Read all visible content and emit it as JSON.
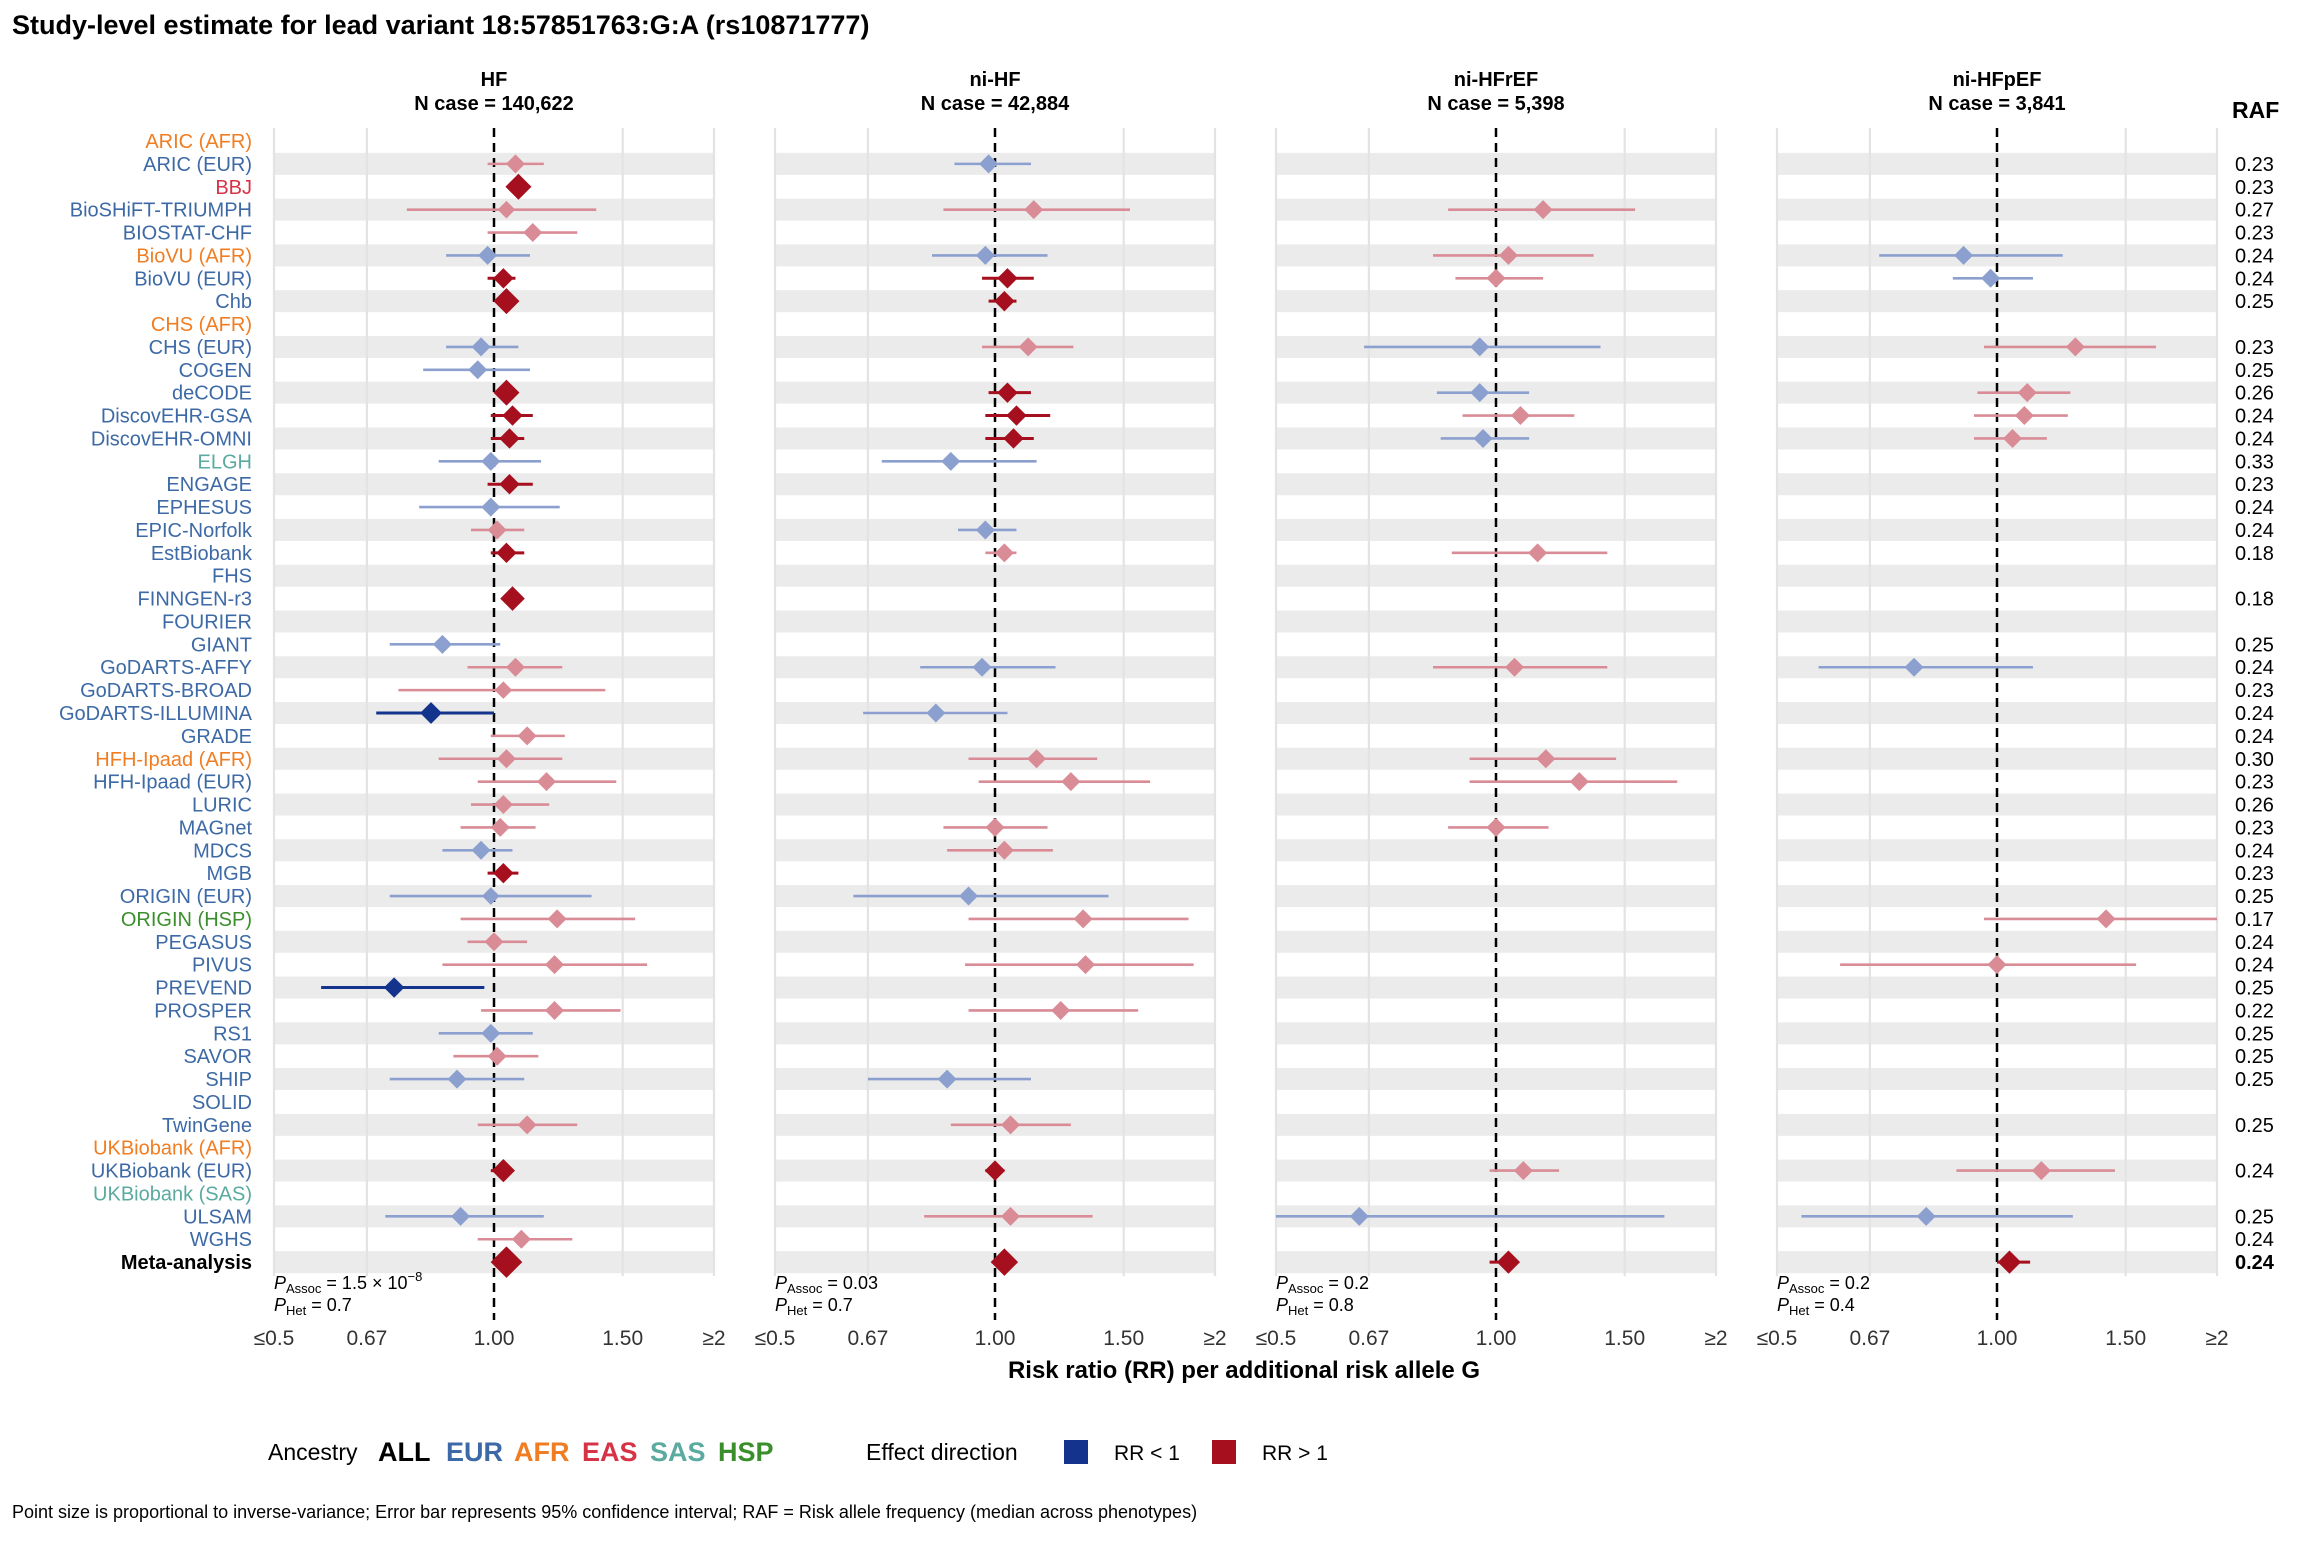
{
  "chart_data": {
    "type": "forest",
    "title": "Study-level estimate for lead variant 18:57851763:G:A (rs10871777)",
    "xlabel": "Risk ratio (RR) per additional risk allele G",
    "raf_header": "RAF",
    "x_ticks": [
      {
        "value": 0.5,
        "label": "≤0.5"
      },
      {
        "value": 0.67,
        "label": "0.67"
      },
      {
        "value": 1.0,
        "label": "1.00"
      },
      {
        "value": 1.5,
        "label": "1.50"
      },
      {
        "value": 2.0,
        "label": "≥2"
      }
    ],
    "xlim": [
      0.5,
      2.0
    ],
    "x_scale": "log",
    "ancestry_colors": {
      "ALL": "#000000",
      "EUR": "#3d6aa6",
      "AFR": "#f07d22",
      "EAS": "#d63446",
      "SAS": "#5aaaa0",
      "HSP": "#3a8f2c"
    },
    "effect_colors": {
      "RR < 1": "#13338c",
      "RR > 1": "#a50f1e"
    },
    "studies": [
      {
        "name": "ARIC (AFR)",
        "ancestry": "AFR",
        "raf": ""
      },
      {
        "name": "ARIC (EUR)",
        "ancestry": "EUR",
        "raf": "0.23"
      },
      {
        "name": "BBJ",
        "ancestry": "EAS",
        "raf": "0.23"
      },
      {
        "name": "BioSHiFT-TRIUMPH",
        "ancestry": "EUR",
        "raf": "0.27"
      },
      {
        "name": "BIOSTAT-CHF",
        "ancestry": "EUR",
        "raf": "0.23"
      },
      {
        "name": "BioVU (AFR)",
        "ancestry": "AFR",
        "raf": "0.24"
      },
      {
        "name": "BioVU (EUR)",
        "ancestry": "EUR",
        "raf": "0.24"
      },
      {
        "name": "Chb",
        "ancestry": "EUR",
        "raf": "0.25"
      },
      {
        "name": "CHS (AFR)",
        "ancestry": "AFR",
        "raf": ""
      },
      {
        "name": "CHS (EUR)",
        "ancestry": "EUR",
        "raf": "0.23"
      },
      {
        "name": "COGEN",
        "ancestry": "EUR",
        "raf": "0.25"
      },
      {
        "name": "deCODE",
        "ancestry": "EUR",
        "raf": "0.26"
      },
      {
        "name": "DiscovEHR-GSA",
        "ancestry": "EUR",
        "raf": "0.24"
      },
      {
        "name": "DiscovEHR-OMNI",
        "ancestry": "EUR",
        "raf": "0.24"
      },
      {
        "name": "ELGH",
        "ancestry": "SAS",
        "raf": "0.33"
      },
      {
        "name": "ENGAGE",
        "ancestry": "EUR",
        "raf": "0.23"
      },
      {
        "name": "EPHESUS",
        "ancestry": "EUR",
        "raf": "0.24"
      },
      {
        "name": "EPIC-Norfolk",
        "ancestry": "EUR",
        "raf": "0.24"
      },
      {
        "name": "EstBiobank",
        "ancestry": "EUR",
        "raf": "0.18"
      },
      {
        "name": "FHS",
        "ancestry": "EUR",
        "raf": ""
      },
      {
        "name": "FINNGEN-r3",
        "ancestry": "EUR",
        "raf": "0.18"
      },
      {
        "name": "FOURIER",
        "ancestry": "EUR",
        "raf": ""
      },
      {
        "name": "GIANT",
        "ancestry": "EUR",
        "raf": "0.25"
      },
      {
        "name": "GoDARTS-AFFY",
        "ancestry": "EUR",
        "raf": "0.24"
      },
      {
        "name": "GoDARTS-BROAD",
        "ancestry": "EUR",
        "raf": "0.23"
      },
      {
        "name": "GoDARTS-ILLUMINA",
        "ancestry": "EUR",
        "raf": "0.24"
      },
      {
        "name": "GRADE",
        "ancestry": "EUR",
        "raf": "0.24"
      },
      {
        "name": "HFH-Ipaad (AFR)",
        "ancestry": "AFR",
        "raf": "0.30"
      },
      {
        "name": "HFH-Ipaad (EUR)",
        "ancestry": "EUR",
        "raf": "0.23"
      },
      {
        "name": "LURIC",
        "ancestry": "EUR",
        "raf": "0.26"
      },
      {
        "name": "MAGnet",
        "ancestry": "EUR",
        "raf": "0.23"
      },
      {
        "name": "MDCS",
        "ancestry": "EUR",
        "raf": "0.24"
      },
      {
        "name": "MGB",
        "ancestry": "EUR",
        "raf": "0.23"
      },
      {
        "name": "ORIGIN (EUR)",
        "ancestry": "EUR",
        "raf": "0.25"
      },
      {
        "name": "ORIGIN (HSP)",
        "ancestry": "HSP",
        "raf": "0.17"
      },
      {
        "name": "PEGASUS",
        "ancestry": "EUR",
        "raf": "0.24"
      },
      {
        "name": "PIVUS",
        "ancestry": "EUR",
        "raf": "0.24"
      },
      {
        "name": "PREVEND",
        "ancestry": "EUR",
        "raf": "0.25"
      },
      {
        "name": "PROSPER",
        "ancestry": "EUR",
        "raf": "0.22"
      },
      {
        "name": "RS1",
        "ancestry": "EUR",
        "raf": "0.25"
      },
      {
        "name": "SAVOR",
        "ancestry": "EUR",
        "raf": "0.25"
      },
      {
        "name": "SHIP",
        "ancestry": "EUR",
        "raf": "0.25"
      },
      {
        "name": "SOLID",
        "ancestry": "EUR",
        "raf": ""
      },
      {
        "name": "TwinGene",
        "ancestry": "EUR",
        "raf": "0.25"
      },
      {
        "name": "UKBiobank (AFR)",
        "ancestry": "AFR",
        "raf": ""
      },
      {
        "name": "UKBiobank (EUR)",
        "ancestry": "EUR",
        "raf": "0.24"
      },
      {
        "name": "UKBiobank (SAS)",
        "ancestry": "SAS",
        "raf": ""
      },
      {
        "name": "ULSAM",
        "ancestry": "EUR",
        "raf": "0.25"
      },
      {
        "name": "WGHS",
        "ancestry": "EUR",
        "raf": "0.24"
      },
      {
        "name": "Meta-analysis",
        "ancestry": "ALL",
        "raf": "0.24"
      }
    ],
    "panels": [
      {
        "name": "HF",
        "n_case": "N case = 140,622",
        "p_assoc_value": " = 1.5 × 10",
        "p_assoc_exp": "−8",
        "p_het_value": " = 0.7",
        "estimates": [
          [
            1,
            1.07,
            0.98,
            1.17,
            0.5
          ],
          [
            2,
            1.08,
            1.05,
            1.11,
            1.0
          ],
          [
            3,
            1.04,
            0.76,
            1.38,
            0.4
          ],
          [
            4,
            1.13,
            0.98,
            1.3,
            0.5
          ],
          [
            5,
            0.98,
            0.86,
            1.12,
            0.5
          ],
          [
            6,
            1.03,
            0.98,
            1.07,
            0.6
          ],
          [
            7,
            1.04,
            1.01,
            1.07,
            1.0
          ],
          [
            9,
            0.96,
            0.86,
            1.08,
            0.5
          ],
          [
            10,
            0.95,
            0.8,
            1.12,
            0.5
          ],
          [
            11,
            1.04,
            1.01,
            1.06,
            1.0
          ],
          [
            12,
            1.06,
            0.99,
            1.13,
            0.6
          ],
          [
            13,
            1.05,
            0.99,
            1.1,
            0.6
          ],
          [
            14,
            0.99,
            0.84,
            1.16,
            0.5
          ],
          [
            15,
            1.05,
            0.98,
            1.13,
            0.6
          ],
          [
            16,
            0.99,
            0.79,
            1.23,
            0.5
          ],
          [
            17,
            1.01,
            0.93,
            1.1,
            0.5
          ],
          [
            18,
            1.04,
            0.99,
            1.1,
            0.6
          ],
          [
            20,
            1.06,
            1.03,
            1.08,
            0.9
          ],
          [
            22,
            0.85,
            0.72,
            1.02,
            0.5
          ],
          [
            23,
            1.07,
            0.92,
            1.24,
            0.5
          ],
          [
            24,
            1.03,
            0.74,
            1.42,
            0.4
          ],
          [
            25,
            0.82,
            0.69,
            1.0,
            0.7
          ],
          [
            26,
            1.11,
            0.99,
            1.25,
            0.5
          ],
          [
            27,
            1.04,
            0.84,
            1.24,
            0.5
          ],
          [
            28,
            1.18,
            0.95,
            1.47,
            0.5
          ],
          [
            29,
            1.03,
            0.93,
            1.19,
            0.5
          ],
          [
            30,
            1.02,
            0.9,
            1.14,
            0.5
          ],
          [
            31,
            0.96,
            0.85,
            1.06,
            0.5
          ],
          [
            32,
            1.03,
            0.98,
            1.08,
            0.6
          ],
          [
            33,
            0.99,
            0.72,
            1.36,
            0.4
          ],
          [
            34,
            1.22,
            0.9,
            1.56,
            0.5
          ],
          [
            35,
            1.0,
            0.92,
            1.11,
            0.5
          ],
          [
            36,
            1.21,
            0.85,
            1.62,
            0.5
          ],
          [
            37,
            0.73,
            0.58,
            0.97,
            0.6
          ],
          [
            38,
            1.21,
            0.96,
            1.49,
            0.5
          ],
          [
            39,
            0.99,
            0.84,
            1.13,
            0.5
          ],
          [
            40,
            1.01,
            0.88,
            1.15,
            0.5
          ],
          [
            41,
            0.89,
            0.72,
            1.1,
            0.5
          ],
          [
            43,
            1.11,
            0.95,
            1.3,
            0.5
          ],
          [
            45,
            1.03,
            0.99,
            1.06,
            0.8
          ],
          [
            47,
            0.9,
            0.71,
            1.17,
            0.5
          ],
          [
            48,
            1.09,
            0.95,
            1.28,
            0.5
          ],
          [
            49,
            1.04,
            1.02,
            1.06,
            1.4
          ]
        ]
      },
      {
        "name": "ni-HF",
        "n_case": "N case = 42,884",
        "p_assoc_value": " = 0.03",
        "p_assoc_exp": "",
        "p_het_value": " = 0.7",
        "estimates": [
          [
            1,
            0.98,
            0.88,
            1.12,
            0.5
          ],
          [
            3,
            1.13,
            0.85,
            1.53,
            0.5
          ],
          [
            5,
            0.97,
            0.82,
            1.18,
            0.5
          ],
          [
            6,
            1.04,
            0.96,
            1.13,
            0.6
          ],
          [
            7,
            1.03,
            0.98,
            1.07,
            0.6
          ],
          [
            9,
            1.11,
            0.96,
            1.28,
            0.5
          ],
          [
            11,
            1.04,
            0.98,
            1.12,
            0.6
          ],
          [
            12,
            1.07,
            0.97,
            1.19,
            0.6
          ],
          [
            13,
            1.06,
            0.97,
            1.13,
            0.6
          ],
          [
            14,
            0.87,
            0.7,
            1.14,
            0.5
          ],
          [
            17,
            0.97,
            0.89,
            1.07,
            0.5
          ],
          [
            18,
            1.03,
            0.97,
            1.07,
            0.5
          ],
          [
            23,
            0.96,
            0.79,
            1.21,
            0.5
          ],
          [
            25,
            0.83,
            0.66,
            1.04,
            0.5
          ],
          [
            27,
            1.14,
            0.92,
            1.38,
            0.5
          ],
          [
            28,
            1.27,
            0.95,
            1.63,
            0.5
          ],
          [
            30,
            1.0,
            0.85,
            1.18,
            0.5
          ],
          [
            31,
            1.03,
            0.86,
            1.2,
            0.5
          ],
          [
            33,
            0.92,
            0.64,
            1.43,
            0.5
          ],
          [
            34,
            1.32,
            0.92,
            1.84,
            0.5
          ],
          [
            36,
            1.33,
            0.91,
            1.87,
            0.5
          ],
          [
            38,
            1.23,
            0.92,
            1.57,
            0.5
          ],
          [
            41,
            0.86,
            0.67,
            1.12,
            0.5
          ],
          [
            43,
            1.05,
            0.87,
            1.27,
            0.5
          ],
          [
            45,
            1.0,
            0.97,
            1.03,
            0.6
          ],
          [
            47,
            1.05,
            0.8,
            1.36,
            0.5
          ],
          [
            49,
            1.03,
            0.99,
            1.06,
            1.1
          ]
        ]
      },
      {
        "name": "ni-HFrEF",
        "n_case": "N case = 5,398",
        "p_assoc_value": " = 0.2",
        "p_assoc_exp": "",
        "p_het_value": " = 0.8",
        "estimates": [
          [
            3,
            1.16,
            0.86,
            1.55,
            0.5
          ],
          [
            5,
            1.04,
            0.82,
            1.36,
            0.5
          ],
          [
            6,
            1.0,
            0.88,
            1.16,
            0.5
          ],
          [
            9,
            0.95,
            0.66,
            1.39,
            0.5
          ],
          [
            11,
            0.95,
            0.83,
            1.11,
            0.5
          ],
          [
            12,
            1.08,
            0.9,
            1.28,
            0.5
          ],
          [
            13,
            0.96,
            0.84,
            1.11,
            0.5
          ],
          [
            18,
            1.14,
            0.87,
            1.42,
            0.5
          ],
          [
            23,
            1.06,
            0.82,
            1.42,
            0.5
          ],
          [
            27,
            1.17,
            0.92,
            1.46,
            0.5
          ],
          [
            28,
            1.3,
            0.92,
            1.77,
            0.5
          ],
          [
            30,
            1.0,
            0.86,
            1.18,
            0.5
          ],
          [
            45,
            1.09,
            0.98,
            1.22,
            0.5
          ],
          [
            47,
            0.65,
            0.5,
            1.7,
            0.5
          ],
          [
            49,
            1.04,
            0.98,
            1.07,
            0.8
          ]
        ]
      },
      {
        "name": "ni-HFpEF",
        "n_case": "N case = 3,841",
        "p_assoc_value": " = 0.2",
        "p_assoc_exp": "",
        "p_het_value": " = 0.4",
        "estimates": [
          [
            5,
            0.9,
            0.69,
            1.23,
            0.5
          ],
          [
            6,
            0.98,
            0.87,
            1.12,
            0.5
          ],
          [
            9,
            1.28,
            0.96,
            1.65,
            0.5
          ],
          [
            11,
            1.1,
            0.94,
            1.26,
            0.5
          ],
          [
            12,
            1.09,
            0.93,
            1.25,
            0.5
          ],
          [
            13,
            1.05,
            0.93,
            1.17,
            0.5
          ],
          [
            23,
            0.77,
            0.57,
            1.12,
            0.5
          ],
          [
            34,
            1.41,
            0.96,
            2.0,
            0.5
          ],
          [
            36,
            1.0,
            0.61,
            1.55,
            0.5
          ],
          [
            45,
            1.15,
            0.88,
            1.45,
            0.5
          ],
          [
            47,
            0.8,
            0.54,
            1.27,
            0.5
          ],
          [
            49,
            1.04,
            1.0,
            1.11,
            0.8
          ]
        ]
      }
    ],
    "legend": {
      "ancestry_label": "Ancestry",
      "ancestry_items": [
        "ALL",
        "EUR",
        "AFR",
        "EAS",
        "SAS",
        "HSP"
      ],
      "effect_label": "Effect direction",
      "effect_items": [
        "RR < 1",
        "RR > 1"
      ]
    },
    "footnote": "Point size is proportional to inverse-variance; Error bar represents 95% confidence interval; RAF = Risk allele frequency (median across phenotypes)"
  }
}
